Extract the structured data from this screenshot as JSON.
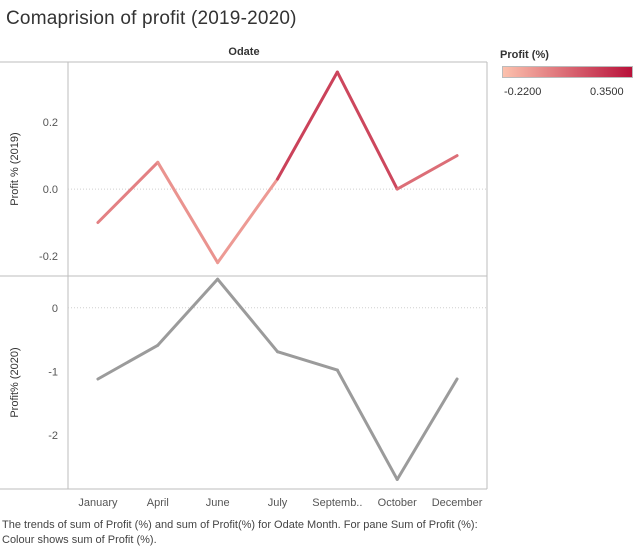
{
  "title": "Comaprision of profit (2019-2020)",
  "colors": {
    "scale_low": "#fcc1ad",
    "scale_high": "#b8113a",
    "series_2020": "#9b9b9b",
    "grid": "#d9d9d9",
    "zero_line": "#cfcfcf",
    "pane_border": "#bdbdbd"
  },
  "legend": {
    "title": "Profit (%)",
    "min_label": "-0.2200",
    "max_label": "0.3500",
    "placement": "top-right"
  },
  "caption": "The trends of sum of Profit (%) and sum of Profit(%) for Odate Month.  For pane Sum of Profit (%):  Colour shows sum of Profit (%).",
  "chart_data": {
    "type": "line",
    "column_header": "Odate",
    "categories": [
      "January",
      "April",
      "June",
      "July",
      "Septemb..",
      "October",
      "December"
    ],
    "color_scale": [
      -0.22,
      0.35
    ],
    "series": [
      {
        "ylabel": "Profit % (2019)",
        "values": [
          -0.1,
          0.08,
          -0.22,
          0.03,
          0.35,
          0.0,
          0.1
        ],
        "ylim": [
          -0.26,
          0.38
        ],
        "yticks": [
          -0.2,
          0.0,
          0.2
        ],
        "ytick_labels": [
          "-0.2",
          "0.0",
          "0.2"
        ],
        "color_by_value": true
      },
      {
        "ylabel": "Profit% (2020)",
        "values": [
          -1.12,
          -0.59,
          0.45,
          -0.69,
          -0.98,
          -2.7,
          -1.12
        ],
        "ylim": [
          -2.85,
          0.5
        ],
        "yticks": [
          -2,
          -1,
          0
        ],
        "ytick_labels": [
          "-2",
          "-1",
          "0"
        ],
        "color_by_value": false
      }
    ]
  }
}
